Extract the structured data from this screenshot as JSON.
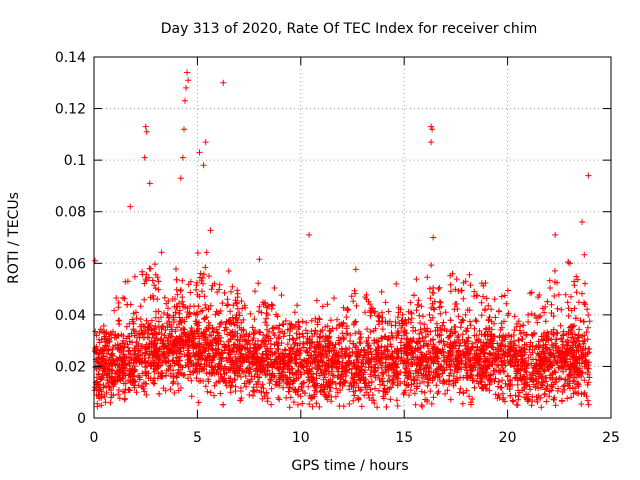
{
  "chart_data": {
    "type": "scatter",
    "title": "Day 313 of 2020, Rate Of TEC Index for receiver chim",
    "xlabel": "GPS time / hours",
    "ylabel": "ROTI / TECUs",
    "xlim": [
      0,
      25
    ],
    "ylim": [
      0,
      0.14
    ],
    "xticks": [
      0,
      5,
      10,
      15,
      20,
      25
    ],
    "xtick_labels": [
      "0",
      "5",
      "10",
      "15",
      "20",
      "25"
    ],
    "yticks": [
      0,
      0.02,
      0.04,
      0.06,
      0.08,
      0.1,
      0.12,
      0.14
    ],
    "ytick_labels": [
      "0",
      "0.02",
      "0.04",
      "0.06",
      "0.08",
      "0.1",
      "0.12",
      "0.14"
    ],
    "grid": true,
    "marker": "+",
    "color": "#ff0000",
    "series": [
      {
        "name": "ROTI",
        "notable_points": [
          {
            "x": 0.05,
            "y": 0.061
          },
          {
            "x": 1.75,
            "y": 0.082
          },
          {
            "x": 2.45,
            "y": 0.101
          },
          {
            "x": 2.5,
            "y": 0.113
          },
          {
            "x": 2.55,
            "y": 0.111
          },
          {
            "x": 2.7,
            "y": 0.091
          },
          {
            "x": 4.2,
            "y": 0.093
          },
          {
            "x": 4.3,
            "y": 0.101
          },
          {
            "x": 4.35,
            "y": 0.112
          },
          {
            "x": 4.4,
            "y": 0.123
          },
          {
            "x": 4.45,
            "y": 0.128
          },
          {
            "x": 4.5,
            "y": 0.134
          },
          {
            "x": 4.55,
            "y": 0.131
          },
          {
            "x": 5.1,
            "y": 0.103
          },
          {
            "x": 5.4,
            "y": 0.107
          },
          {
            "x": 5.3,
            "y": 0.098
          },
          {
            "x": 6.25,
            "y": 0.13
          },
          {
            "x": 10.4,
            "y": 0.071
          },
          {
            "x": 16.3,
            "y": 0.113
          },
          {
            "x": 16.35,
            "y": 0.112
          },
          {
            "x": 16.3,
            "y": 0.107
          },
          {
            "x": 16.4,
            "y": 0.07
          },
          {
            "x": 22.3,
            "y": 0.071
          },
          {
            "x": 23.6,
            "y": 0.076
          },
          {
            "x": 23.9,
            "y": 0.094
          }
        ],
        "envelope": {
          "x": [
            0,
            0.5,
            1,
            1.5,
            2,
            2.5,
            3,
            3.5,
            4,
            4.5,
            5,
            5.5,
            6,
            6.5,
            7,
            7.5,
            8,
            8.5,
            9,
            9.5,
            10,
            10.5,
            11,
            11.5,
            12,
            12.5,
            13,
            13.5,
            14,
            14.5,
            15,
            15.5,
            16,
            16.5,
            17,
            17.5,
            18,
            18.5,
            19,
            19.5,
            20,
            20.5,
            21,
            21.5,
            22,
            22.5,
            23,
            23.5,
            24
          ],
          "peak": [
            0.045,
            0.04,
            0.045,
            0.068,
            0.065,
            0.075,
            0.07,
            0.06,
            0.06,
            0.07,
            0.065,
            0.08,
            0.065,
            0.058,
            0.062,
            0.06,
            0.063,
            0.055,
            0.052,
            0.05,
            0.05,
            0.052,
            0.048,
            0.05,
            0.048,
            0.064,
            0.06,
            0.055,
            0.05,
            0.056,
            0.05,
            0.06,
            0.055,
            0.065,
            0.06,
            0.055,
            0.07,
            0.065,
            0.066,
            0.06,
            0.06,
            0.045,
            0.05,
            0.052,
            0.071,
            0.065,
            0.068,
            0.07,
            0.062
          ],
          "baseline": [
            0.018,
            0.018,
            0.019,
            0.02,
            0.022,
            0.024,
            0.025,
            0.025,
            0.026,
            0.027,
            0.026,
            0.025,
            0.024,
            0.023,
            0.023,
            0.022,
            0.022,
            0.021,
            0.021,
            0.02,
            0.02,
            0.02,
            0.02,
            0.02,
            0.02,
            0.02,
            0.02,
            0.02,
            0.02,
            0.02,
            0.021,
            0.021,
            0.022,
            0.022,
            0.022,
            0.022,
            0.022,
            0.022,
            0.022,
            0.022,
            0.021,
            0.02,
            0.019,
            0.02,
            0.021,
            0.021,
            0.022,
            0.022,
            0.02
          ],
          "min": 0.004
        }
      }
    ]
  }
}
